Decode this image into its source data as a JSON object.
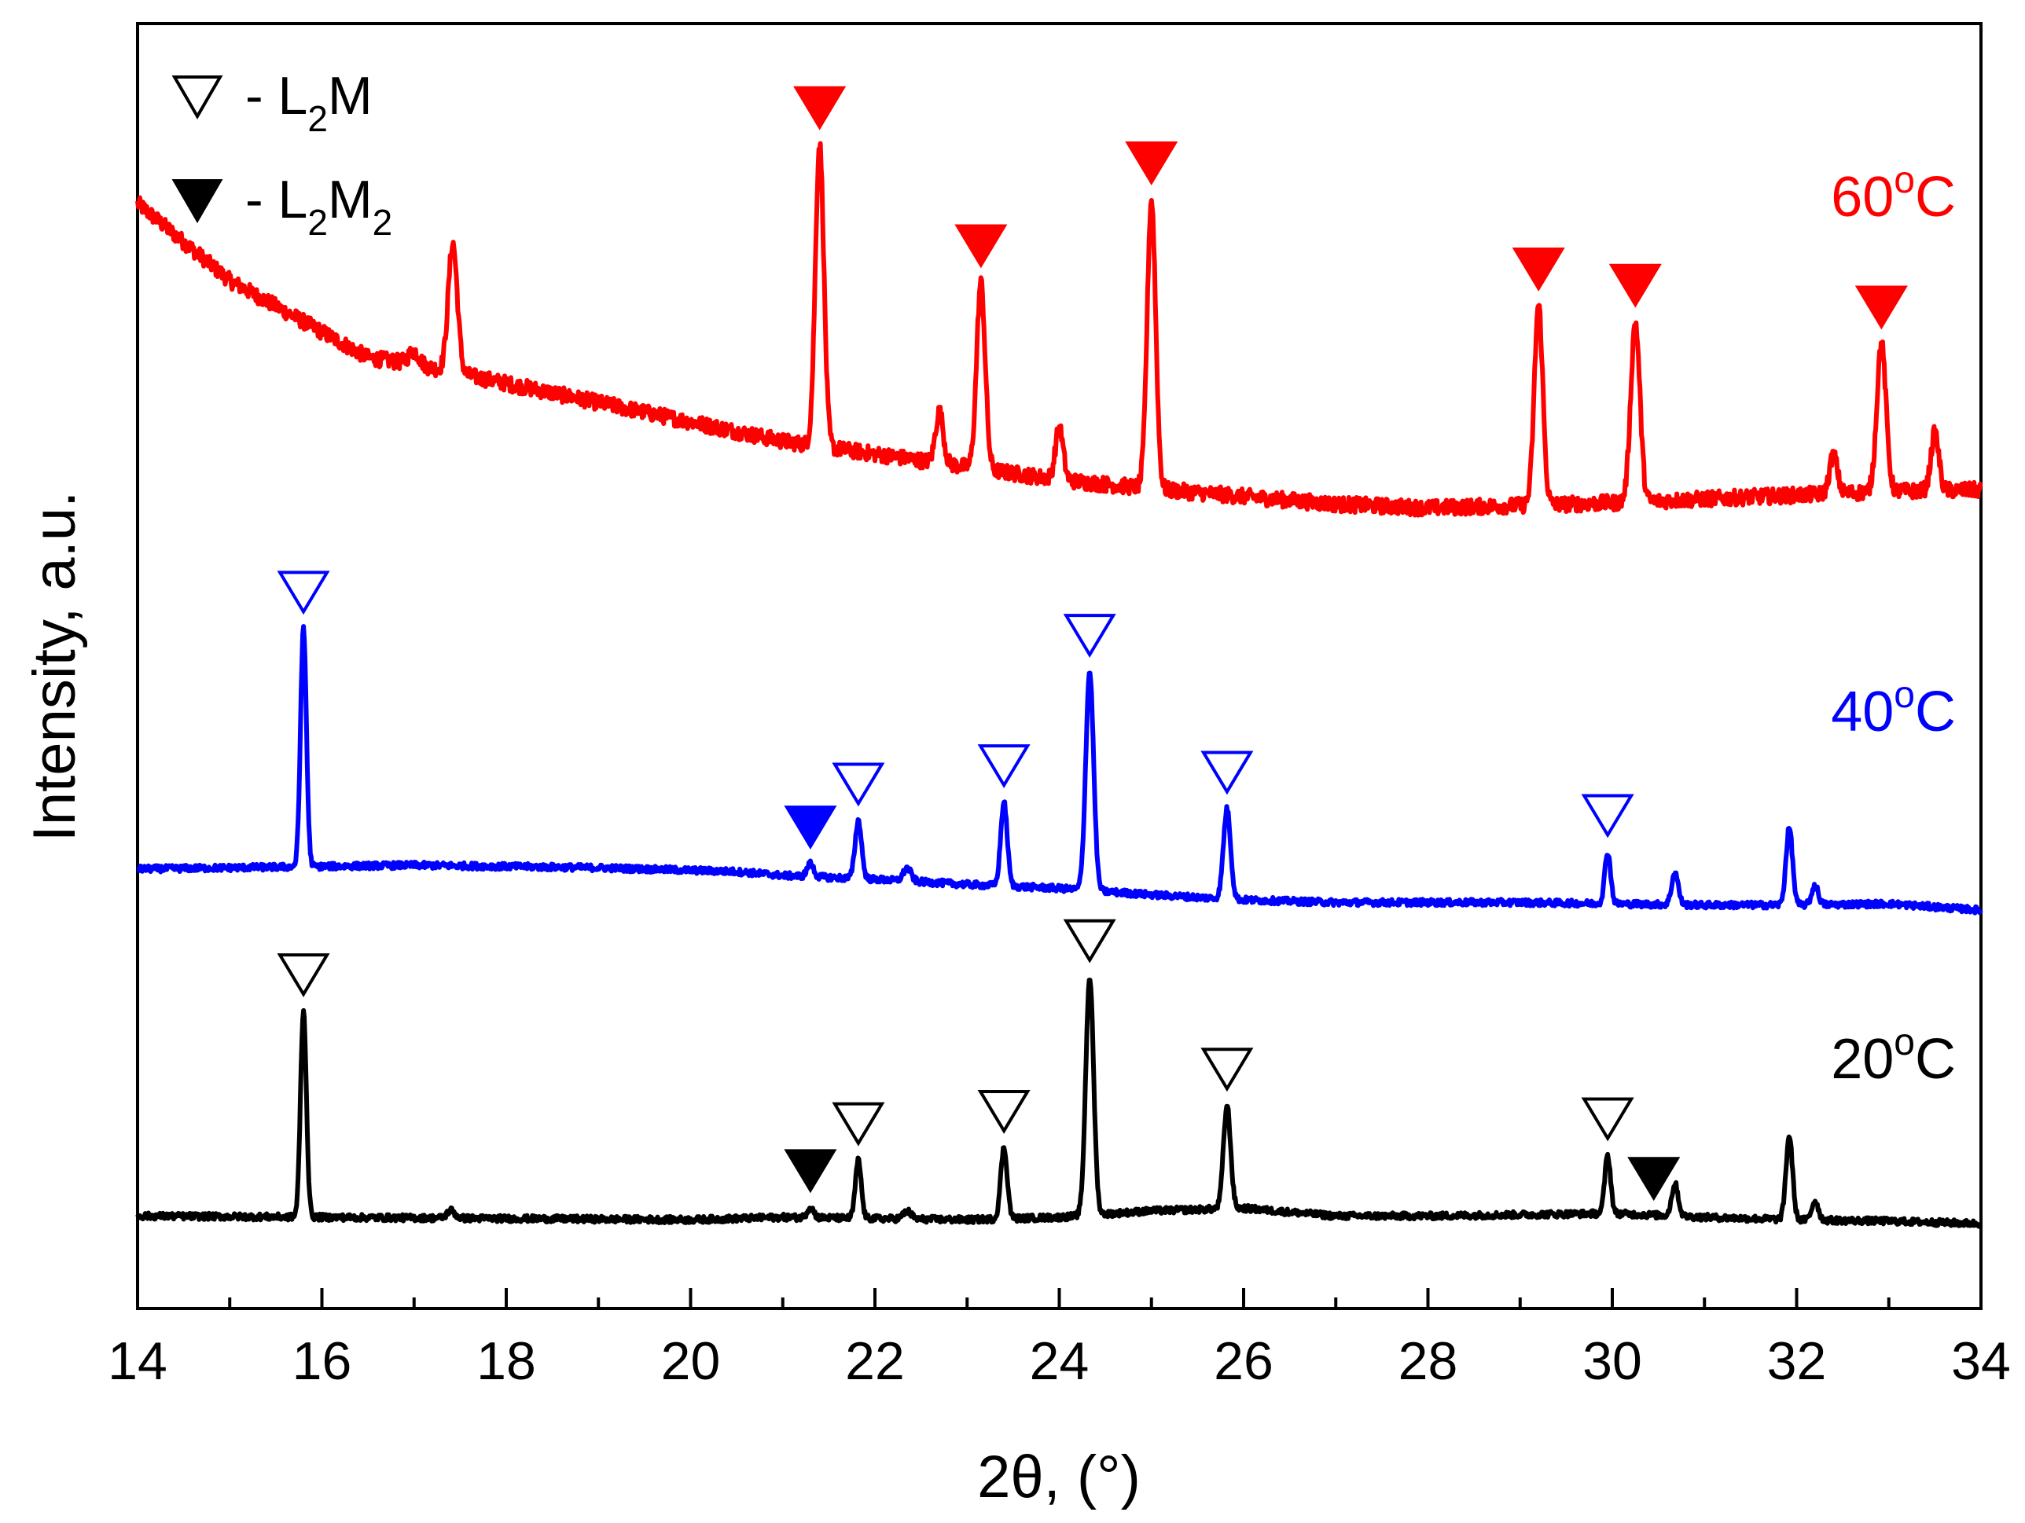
{
  "chart_data": {
    "type": "line",
    "xlabel": "2θ, (°)",
    "ylabel": "Intensity, a.u.",
    "xlim": [
      14,
      34
    ],
    "xticks": [
      "14",
      "16",
      "18",
      "20",
      "22",
      "24",
      "26",
      "28",
      "30",
      "32",
      "34"
    ],
    "grid": false,
    "legend": {
      "placement": "top-left",
      "entries": [
        {
          "marker": "open-triangle-down",
          "text": "- L",
          "sub": "2",
          "text2": "M",
          "sub2": ""
        },
        {
          "marker": "filled-triangle-down",
          "text": "- L",
          "sub": "2",
          "text2": "M",
          "sub2": "2"
        }
      ]
    },
    "series": [
      {
        "name": "60",
        "name_sup": "o",
        "name_tail": "C",
        "color": "#ff0000",
        "baseline": [
          [
            14.0,
            0.86
          ],
          [
            14.5,
            0.83
          ],
          [
            15.0,
            0.8
          ],
          [
            15.5,
            0.78
          ],
          [
            16.0,
            0.76
          ],
          [
            16.5,
            0.74
          ],
          [
            17.0,
            0.735
          ],
          [
            18.0,
            0.72
          ],
          [
            19.0,
            0.705
          ],
          [
            20.0,
            0.69
          ],
          [
            21.0,
            0.675
          ],
          [
            22.0,
            0.665
          ],
          [
            23.0,
            0.655
          ],
          [
            24.0,
            0.645
          ],
          [
            25.0,
            0.638
          ],
          [
            26.0,
            0.632
          ],
          [
            27.0,
            0.626
          ],
          [
            28.0,
            0.623
          ],
          [
            29.0,
            0.625
          ],
          [
            30.0,
            0.627
          ],
          [
            31.0,
            0.63
          ],
          [
            32.0,
            0.633
          ],
          [
            33.0,
            0.636
          ],
          [
            34.0,
            0.637
          ]
        ],
        "peaks": [
          [
            17.0,
            0.01,
            0.08
          ],
          [
            17.42,
            0.1,
            0.07
          ],
          [
            21.4,
            0.235,
            0.065
          ],
          [
            22.7,
            0.04,
            0.06
          ],
          [
            23.15,
            0.145,
            0.065
          ],
          [
            24.0,
            0.04,
            0.06
          ],
          [
            25.0,
            0.225,
            0.065
          ],
          [
            29.2,
            0.155,
            0.065
          ],
          [
            30.25,
            0.14,
            0.07
          ],
          [
            32.4,
            0.03,
            0.06
          ],
          [
            32.92,
            0.115,
            0.07
          ],
          [
            33.5,
            0.045,
            0.06
          ]
        ],
        "markers": [
          {
            "x": 21.4,
            "type": "filled"
          },
          {
            "x": 23.15,
            "type": "filled"
          },
          {
            "x": 25.0,
            "type": "filled"
          },
          {
            "x": 29.2,
            "type": "filled"
          },
          {
            "x": 30.25,
            "type": "filled"
          },
          {
            "x": 32.92,
            "type": "filled"
          }
        ]
      },
      {
        "name": "40",
        "name_sup": "o",
        "name_tail": "C",
        "color": "#0000ff",
        "baseline": [
          [
            14.0,
            0.342
          ],
          [
            15.0,
            0.343
          ],
          [
            17.0,
            0.345
          ],
          [
            19.0,
            0.343
          ],
          [
            20.5,
            0.34
          ],
          [
            21.0,
            0.337
          ],
          [
            22.0,
            0.334
          ],
          [
            23.0,
            0.33
          ],
          [
            24.0,
            0.327
          ],
          [
            25.0,
            0.322
          ],
          [
            26.0,
            0.318
          ],
          [
            27.0,
            0.316
          ],
          [
            28.0,
            0.316
          ],
          [
            29.0,
            0.316
          ],
          [
            30.0,
            0.315
          ],
          [
            31.0,
            0.314
          ],
          [
            32.0,
            0.314
          ],
          [
            33.0,
            0.315
          ],
          [
            34.0,
            0.31
          ]
        ],
        "peaks": [
          [
            15.8,
            0.185,
            0.045
          ],
          [
            21.3,
            0.01,
            0.05
          ],
          [
            21.82,
            0.045,
            0.05
          ],
          [
            22.35,
            0.01,
            0.06
          ],
          [
            23.4,
            0.065,
            0.05
          ],
          [
            24.33,
            0.17,
            0.06
          ],
          [
            25.82,
            0.07,
            0.055
          ],
          [
            29.95,
            0.04,
            0.045
          ],
          [
            30.68,
            0.025,
            0.05
          ],
          [
            31.92,
            0.06,
            0.05
          ],
          [
            32.2,
            0.015,
            0.05
          ]
        ],
        "markers": [
          {
            "x": 15.8,
            "type": "open"
          },
          {
            "x": 21.3,
            "type": "filled"
          },
          {
            "x": 21.82,
            "type": "open"
          },
          {
            "x": 23.4,
            "type": "open"
          },
          {
            "x": 24.33,
            "type": "open"
          },
          {
            "x": 25.82,
            "type": "open"
          },
          {
            "x": 29.95,
            "type": "open"
          }
        ]
      },
      {
        "name": "20",
        "name_sup": "o",
        "name_tail": "C",
        "color": "#000000",
        "baseline": [
          [
            14.0,
            0.072
          ],
          [
            16.0,
            0.071
          ],
          [
            18.0,
            0.07
          ],
          [
            20.0,
            0.069
          ],
          [
            21.0,
            0.071
          ],
          [
            22.0,
            0.07
          ],
          [
            23.0,
            0.069
          ],
          [
            24.0,
            0.071
          ],
          [
            25.0,
            0.076
          ],
          [
            26.0,
            0.078
          ],
          [
            27.0,
            0.072
          ],
          [
            28.0,
            0.072
          ],
          [
            29.0,
            0.073
          ],
          [
            30.0,
            0.074
          ],
          [
            31.0,
            0.071
          ],
          [
            32.0,
            0.069
          ],
          [
            33.0,
            0.068
          ],
          [
            34.0,
            0.066
          ]
        ],
        "peaks": [
          [
            15.8,
            0.16,
            0.045
          ],
          [
            17.4,
            0.006,
            0.06
          ],
          [
            21.3,
            0.008,
            0.05
          ],
          [
            21.82,
            0.045,
            0.045
          ],
          [
            22.35,
            0.006,
            0.06
          ],
          [
            23.4,
            0.055,
            0.05
          ],
          [
            24.33,
            0.185,
            0.06
          ],
          [
            25.82,
            0.08,
            0.055
          ],
          [
            29.95,
            0.045,
            0.045
          ],
          [
            30.68,
            0.025,
            0.05
          ],
          [
            31.92,
            0.065,
            0.05
          ],
          [
            32.2,
            0.015,
            0.05
          ]
        ],
        "markers": [
          {
            "x": 15.8,
            "type": "open"
          },
          {
            "x": 21.3,
            "type": "filled"
          },
          {
            "x": 21.82,
            "type": "open"
          },
          {
            "x": 23.4,
            "type": "open"
          },
          {
            "x": 24.33,
            "type": "open"
          },
          {
            "x": 25.82,
            "type": "open"
          },
          {
            "x": 29.95,
            "type": "open"
          },
          {
            "x": 30.45,
            "type": "filled"
          }
        ]
      }
    ]
  }
}
